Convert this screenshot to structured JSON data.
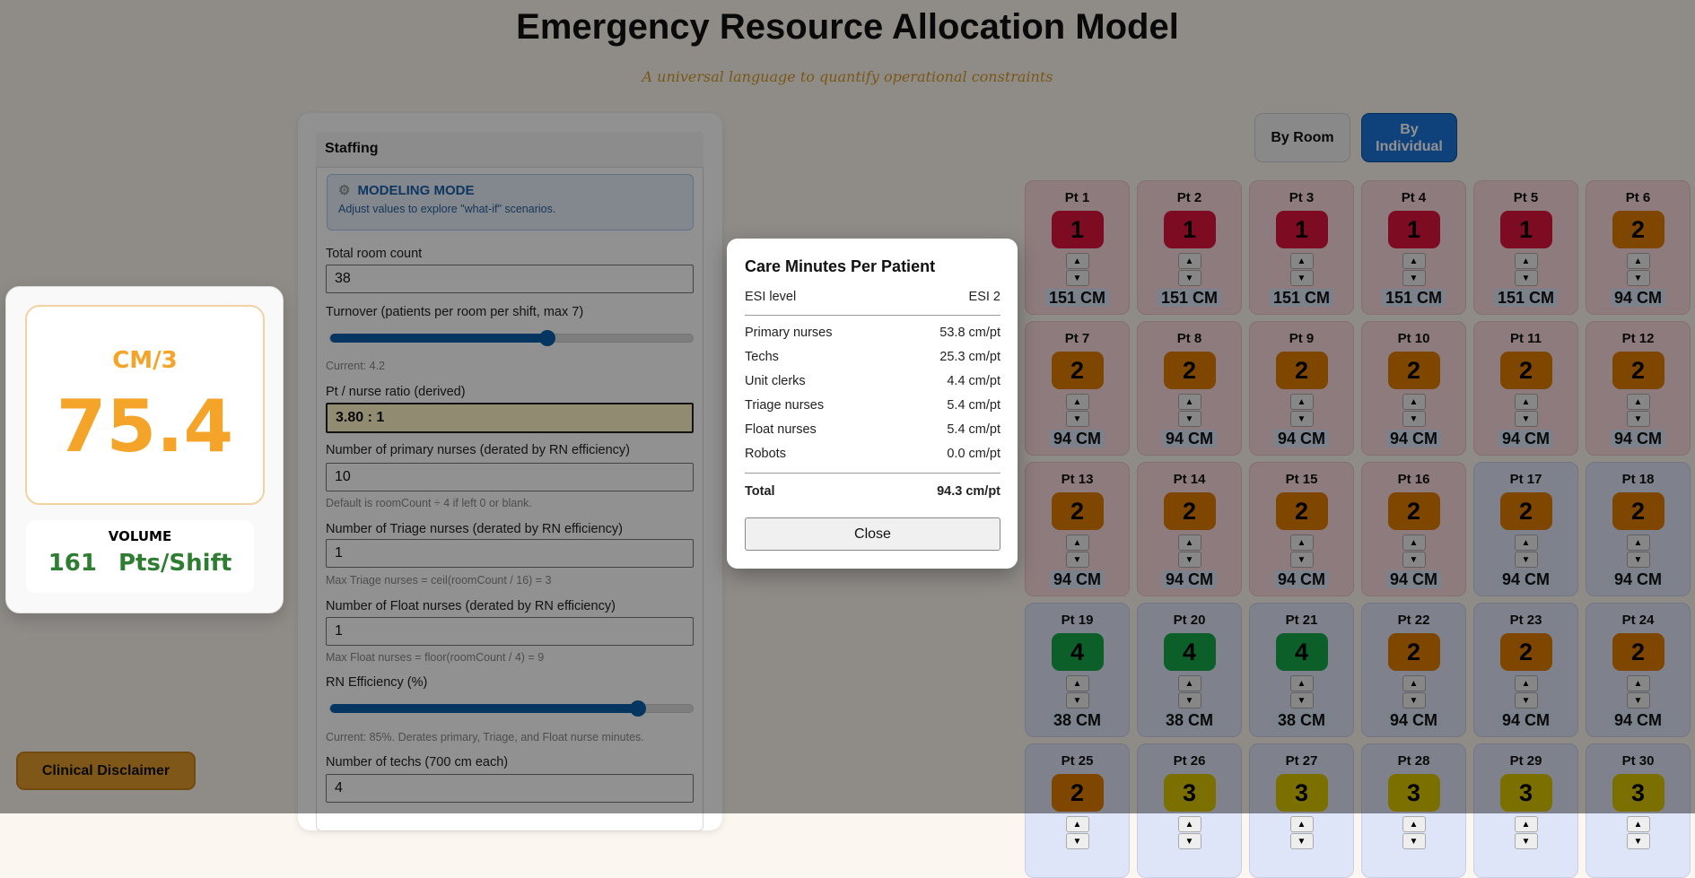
{
  "header": {
    "title": "Emergency Resource Allocation Model",
    "subtitle": "A universal language to quantify operational constraints"
  },
  "metrics": {
    "cm_label": "CM/3",
    "cm_value": "75.4",
    "volume_label": "VOLUME",
    "volume_value": "161",
    "volume_unit": "Pts/Shift"
  },
  "disclaimer_label": "Clinical Disclaimer",
  "staffing": {
    "title": "Staffing",
    "mode_title": "MODELING MODE",
    "mode_desc": "Adjust values to explore \"what-if\" scenarios.",
    "room_count_label": "Total room count",
    "room_count": "38",
    "turnover_label": "Turnover (patients per room per shift, max 7)",
    "turnover_value": 4.2,
    "turnover_max": 7,
    "turnover_current": "Current: 4.2",
    "ratio_label": "Pt / nurse ratio (derived)",
    "ratio": "3.80 : 1",
    "primary_label": "Number of primary nurses (derated by RN efficiency)",
    "primary": "10",
    "primary_hint": "Default is roomCount ÷ 4 if left 0 or blank.",
    "triage_label": "Number of Triage nurses (derated by RN efficiency)",
    "triage": "1",
    "triage_hint": "Max Triage nurses = ceil(roomCount / 16) = 3",
    "float_label": "Number of Float nurses (derated by RN efficiency)",
    "float": "1",
    "float_hint": "Max Float nurses = floor(roomCount / 4) = 9",
    "eff_label": "RN Efficiency (%)",
    "eff_value": 85,
    "eff_current": "Current: 85%. Derates primary, Triage, and Float nurse minutes.",
    "techs_label": "Number of techs (700 cm each)",
    "techs": "4"
  },
  "view_toggle": {
    "by_room": "By Room",
    "by_individual": "By Individual",
    "active": "by_individual"
  },
  "esi_colors": {
    "1": "#dc143c",
    "2": "#e07b00",
    "3": "#d9c400",
    "4": "#17a84a"
  },
  "patients": [
    {
      "label": "Pt 1",
      "esi": 1,
      "cm": "151 CM",
      "zone": "pink"
    },
    {
      "label": "Pt 2",
      "esi": 1,
      "cm": "151 CM",
      "zone": "pink"
    },
    {
      "label": "Pt 3",
      "esi": 1,
      "cm": "151 CM",
      "zone": "pink"
    },
    {
      "label": "Pt 4",
      "esi": 1,
      "cm": "151 CM",
      "zone": "pink"
    },
    {
      "label": "Pt 5",
      "esi": 1,
      "cm": "151 CM",
      "zone": "pink"
    },
    {
      "label": "Pt 6",
      "esi": 2,
      "cm": "94 CM",
      "zone": "pink"
    },
    {
      "label": "Pt 7",
      "esi": 2,
      "cm": "94 CM",
      "zone": "pink"
    },
    {
      "label": "Pt 8",
      "esi": 2,
      "cm": "94 CM",
      "zone": "pink"
    },
    {
      "label": "Pt 9",
      "esi": 2,
      "cm": "94 CM",
      "zone": "pink"
    },
    {
      "label": "Pt 10",
      "esi": 2,
      "cm": "94 CM",
      "zone": "pink"
    },
    {
      "label": "Pt 11",
      "esi": 2,
      "cm": "94 CM",
      "zone": "pink"
    },
    {
      "label": "Pt 12",
      "esi": 2,
      "cm": "94 CM",
      "zone": "pink"
    },
    {
      "label": "Pt 13",
      "esi": 2,
      "cm": "94 CM",
      "zone": "pink"
    },
    {
      "label": "Pt 14",
      "esi": 2,
      "cm": "94 CM",
      "zone": "pink"
    },
    {
      "label": "Pt 15",
      "esi": 2,
      "cm": "94 CM",
      "zone": "pink"
    },
    {
      "label": "Pt 16",
      "esi": 2,
      "cm": "94 CM",
      "zone": "pink"
    },
    {
      "label": "Pt 17",
      "esi": 2,
      "cm": "94 CM",
      "zone": "blue"
    },
    {
      "label": "Pt 18",
      "esi": 2,
      "cm": "94 CM",
      "zone": "blue"
    },
    {
      "label": "Pt 19",
      "esi": 4,
      "cm": "38 CM",
      "zone": "blue"
    },
    {
      "label": "Pt 20",
      "esi": 4,
      "cm": "38 CM",
      "zone": "blue"
    },
    {
      "label": "Pt 21",
      "esi": 4,
      "cm": "38 CM",
      "zone": "blue"
    },
    {
      "label": "Pt 22",
      "esi": 2,
      "cm": "94 CM",
      "zone": "blue"
    },
    {
      "label": "Pt 23",
      "esi": 2,
      "cm": "94 CM",
      "zone": "blue"
    },
    {
      "label": "Pt 24",
      "esi": 2,
      "cm": "94 CM",
      "zone": "blue"
    },
    {
      "label": "Pt 25",
      "esi": 2,
      "zone": "blue"
    },
    {
      "label": "Pt 26",
      "esi": 3,
      "zone": "blue"
    },
    {
      "label": "Pt 27",
      "esi": 3,
      "zone": "blue"
    },
    {
      "label": "Pt 28",
      "esi": 3,
      "zone": "blue"
    },
    {
      "label": "Pt 29",
      "esi": 3,
      "zone": "blue"
    },
    {
      "label": "Pt 30",
      "esi": 3,
      "zone": "blue"
    }
  ],
  "modal": {
    "title": "Care Minutes Per Patient",
    "esi_label": "ESI level",
    "esi_value": "ESI 2",
    "rows": [
      {
        "label": "Primary nurses",
        "value": "53.8 cm/pt"
      },
      {
        "label": "Techs",
        "value": "25.3 cm/pt"
      },
      {
        "label": "Unit clerks",
        "value": "4.4 cm/pt"
      },
      {
        "label": "Triage nurses",
        "value": "5.4 cm/pt"
      },
      {
        "label": "Float nurses",
        "value": "5.4 cm/pt"
      },
      {
        "label": "Robots",
        "value": "0.0 cm/pt"
      }
    ],
    "total_label": "Total",
    "total_value": "94.3 cm/pt",
    "close_label": "Close"
  }
}
